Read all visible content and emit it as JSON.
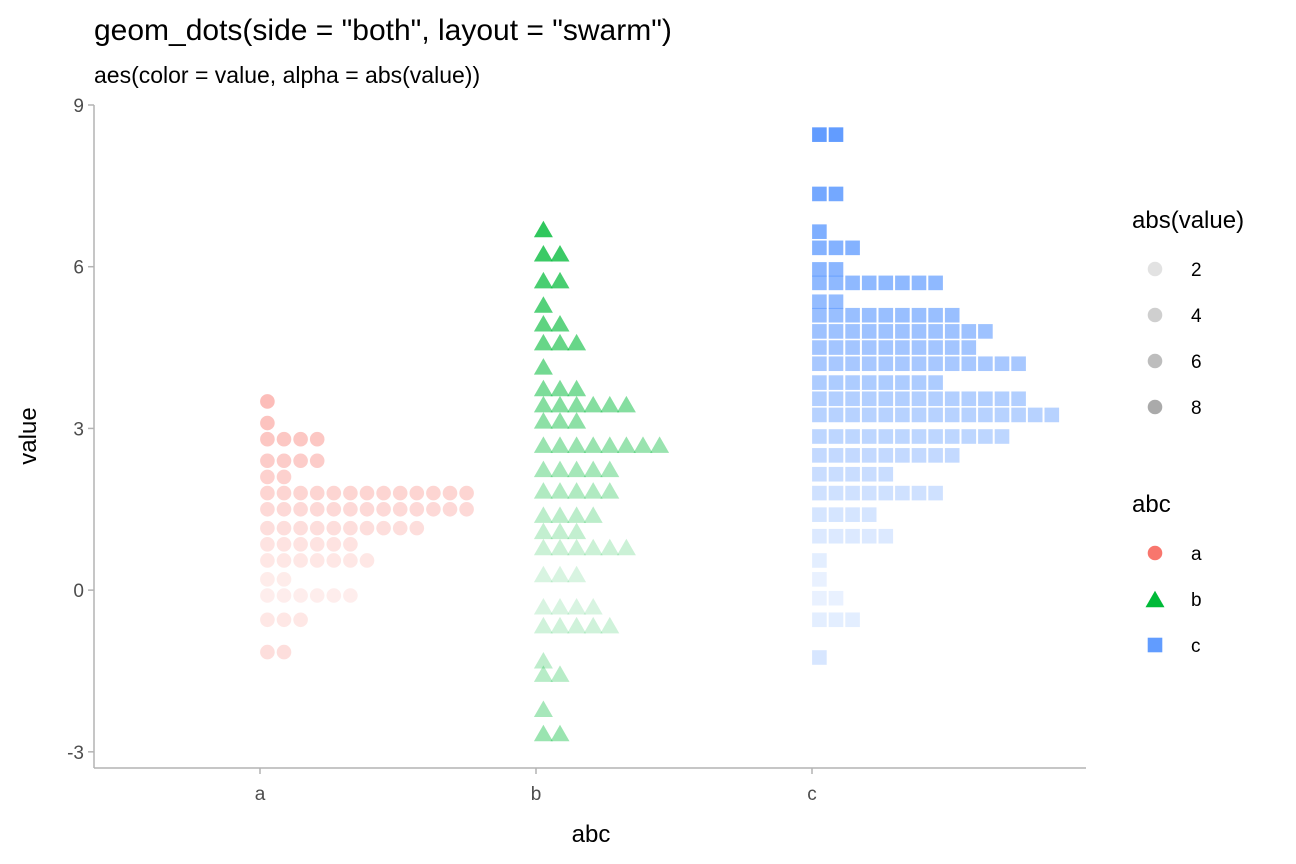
{
  "chart_data": {
    "type": "dotplot",
    "title": "geom_dots(side = \"both\", layout = \"swarm\")",
    "subtitle": "aes(color = value, alpha = abs(value))",
    "xlabel": "abc",
    "ylabel": "value",
    "categories": [
      "a",
      "b",
      "c"
    ],
    "ylim": [
      -3.3,
      9
    ],
    "yticks": [
      -3,
      0,
      3,
      6,
      9
    ],
    "ytick_labels": [
      "-3",
      "0",
      "3",
      "6",
      "9"
    ],
    "grid": false,
    "legend_position": "right",
    "series": [
      {
        "name": "a",
        "shape": "circle",
        "color": "#F8766D",
        "bins": [
          {
            "y": 3.5,
            "count": 1
          },
          {
            "y": 3.1,
            "count": 1
          },
          {
            "y": 2.8,
            "count": 4
          },
          {
            "y": 2.4,
            "count": 4
          },
          {
            "y": 2.1,
            "count": 2
          },
          {
            "y": 1.8,
            "count": 13
          },
          {
            "y": 1.5,
            "count": 13
          },
          {
            "y": 1.15,
            "count": 10
          },
          {
            "y": 0.85,
            "count": 6
          },
          {
            "y": 0.55,
            "count": 7
          },
          {
            "y": 0.2,
            "count": 2
          },
          {
            "y": -0.1,
            "count": 6
          },
          {
            "y": -0.55,
            "count": 3
          },
          {
            "y": -1.15,
            "count": 2
          }
        ]
      },
      {
        "name": "b",
        "shape": "triangle",
        "color": "#00BA38",
        "bins": [
          {
            "y": 6.7,
            "count": 1
          },
          {
            "y": 6.25,
            "count": 2
          },
          {
            "y": 5.75,
            "count": 2
          },
          {
            "y": 5.3,
            "count": 1
          },
          {
            "y": 4.95,
            "count": 2
          },
          {
            "y": 4.6,
            "count": 3
          },
          {
            "y": 4.15,
            "count": 1
          },
          {
            "y": 3.75,
            "count": 3
          },
          {
            "y": 3.45,
            "count": 6
          },
          {
            "y": 3.15,
            "count": 3
          },
          {
            "y": 2.7,
            "count": 8
          },
          {
            "y": 2.25,
            "count": 5
          },
          {
            "y": 1.85,
            "count": 5
          },
          {
            "y": 1.4,
            "count": 4
          },
          {
            "y": 1.1,
            "count": 3
          },
          {
            "y": 0.8,
            "count": 6
          },
          {
            "y": 0.3,
            "count": 3
          },
          {
            "y": -0.3,
            "count": 4
          },
          {
            "y": -0.65,
            "count": 5
          },
          {
            "y": -1.3,
            "count": 1
          },
          {
            "y": -1.55,
            "count": 2
          },
          {
            "y": -2.2,
            "count": 1
          },
          {
            "y": -2.65,
            "count": 2
          }
        ]
      },
      {
        "name": "c",
        "shape": "square",
        "color": "#619CFF",
        "bins": [
          {
            "y": 8.45,
            "count": 2
          },
          {
            "y": 7.35,
            "count": 2
          },
          {
            "y": 6.65,
            "count": 1
          },
          {
            "y": 6.35,
            "count": 3
          },
          {
            "y": 5.95,
            "count": 2
          },
          {
            "y": 5.7,
            "count": 8
          },
          {
            "y": 5.35,
            "count": 2
          },
          {
            "y": 5.1,
            "count": 9
          },
          {
            "y": 4.8,
            "count": 11
          },
          {
            "y": 4.5,
            "count": 10
          },
          {
            "y": 4.2,
            "count": 13
          },
          {
            "y": 3.85,
            "count": 8
          },
          {
            "y": 3.55,
            "count": 13
          },
          {
            "y": 3.25,
            "count": 15
          },
          {
            "y": 2.85,
            "count": 12
          },
          {
            "y": 2.5,
            "count": 9
          },
          {
            "y": 2.15,
            "count": 5
          },
          {
            "y": 1.8,
            "count": 8
          },
          {
            "y": 1.4,
            "count": 4
          },
          {
            "y": 1.0,
            "count": 5
          },
          {
            "y": 0.55,
            "count": 1
          },
          {
            "y": 0.2,
            "count": 1
          },
          {
            "y": -0.15,
            "count": 2
          },
          {
            "y": -0.55,
            "count": 3
          },
          {
            "y": -1.25,
            "count": 1
          }
        ]
      }
    ]
  },
  "legend": {
    "alpha": {
      "title": "abs(value)",
      "items": [
        {
          "label": "2",
          "value": 2
        },
        {
          "label": "4",
          "value": 4
        },
        {
          "label": "6",
          "value": 6
        },
        {
          "label": "8",
          "value": 8
        }
      ]
    },
    "shape": {
      "title": "abc",
      "items": [
        {
          "label": "a",
          "shape": "circle",
          "color": "#F8766D"
        },
        {
          "label": "b",
          "shape": "triangle",
          "color": "#00BA38"
        },
        {
          "label": "c",
          "shape": "square",
          "color": "#619CFF"
        }
      ]
    }
  }
}
